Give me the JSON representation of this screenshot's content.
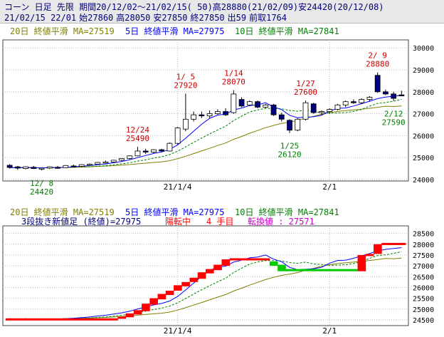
{
  "header": {
    "line1": "コーン 日足 先限 期間20/12/02～21/02/15( 50)高28880(21/02/09)安24420(20/12/08)",
    "date": "21/02/15 22/01",
    "open": "始27860",
    "high": "高28050",
    "low": "安27850",
    "close": "終27850",
    "volume": "出59",
    "oi": "前取1764"
  },
  "colors": {
    "up": "#ffffff",
    "down": "#000080",
    "ma20": "#808000",
    "ma5": "#0000ff",
    "ma10": "#008000",
    "red": "#ff0000",
    "green": "#00cc00",
    "annot_high": "#cc0000",
    "annot_low": "#008000"
  },
  "top_panel": {
    "legend": {
      "ma20": "20日 終値平滑 MA=27519",
      "ma5": "5日 終値平滑 MA=27975",
      "ma10": "10日 終値平滑 MA=27841"
    },
    "yticks": [
      "30000",
      "29000",
      "28000",
      "27000",
      "26000",
      "25000",
      "24000"
    ],
    "xticks": [
      "21/1/4",
      "2/1"
    ],
    "annotations": [
      {
        "date": "12/ 8",
        "value": "24420",
        "kind": "low"
      },
      {
        "date": "12/24",
        "value": "25490",
        "kind": "high"
      },
      {
        "date": "1/ 5",
        "value": "27920",
        "kind": "high"
      },
      {
        "date": "1/14",
        "value": "28070",
        "kind": "high"
      },
      {
        "date": "1/25",
        "value": "26120",
        "kind": "low"
      },
      {
        "date": "1/27",
        "value": "27600",
        "kind": "high"
      },
      {
        "date": "2/ 9",
        "value": "28880",
        "kind": "high"
      },
      {
        "date": "2/12",
        "value": "27590",
        "kind": "low"
      }
    ]
  },
  "bottom_panel": {
    "legend": {
      "ma20": "20日 終値平滑 MA=27519",
      "ma5": "5日 終値平滑 MA=27975",
      "ma10": "10日 終値平滑 MA=27841"
    },
    "info": {
      "label": "3段抜き新値足 (終値)=27975",
      "trend": "陽転中",
      "count": "4 手目",
      "reversal": "転換値 : 27571"
    },
    "yticks": [
      "28500",
      "28000",
      "27500",
      "27000",
      "26500",
      "26000",
      "25500",
      "25000",
      "24500"
    ],
    "xticks": [
      "21/1/4",
      "2/1"
    ]
  },
  "chart_data": [
    {
      "type": "candlestick",
      "period": "20/12/02–21/02/15",
      "ylim": [
        24000,
        30300
      ],
      "x": [
        "12/02",
        "12/03",
        "12/04",
        "12/07",
        "12/08",
        "12/09",
        "12/10",
        "12/11",
        "12/14",
        "12/15",
        "12/16",
        "12/17",
        "12/18",
        "12/21",
        "12/22",
        "12/23",
        "12/24",
        "12/25",
        "12/28",
        "12/29",
        "12/30",
        "1/04",
        "1/05",
        "1/06",
        "1/07",
        "1/08",
        "1/12",
        "1/13",
        "1/14",
        "1/15",
        "1/18",
        "1/19",
        "1/20",
        "1/21",
        "1/22",
        "1/25",
        "1/26",
        "1/27",
        "1/28",
        "1/29",
        "2/01",
        "2/02",
        "2/03",
        "2/04",
        "2/05",
        "2/08",
        "2/09",
        "2/10",
        "2/12",
        "2/15"
      ],
      "ohlc": [
        [
          24650,
          24700,
          24500,
          24550
        ],
        [
          24580,
          24620,
          24440,
          24520
        ],
        [
          24500,
          24600,
          24460,
          24580
        ],
        [
          24560,
          24620,
          24480,
          24500
        ],
        [
          24500,
          24540,
          24420,
          24520
        ],
        [
          24520,
          24600,
          24480,
          24580
        ],
        [
          24560,
          24620,
          24500,
          24540
        ],
        [
          24540,
          24660,
          24520,
          24640
        ],
        [
          24620,
          24680,
          24560,
          24600
        ],
        [
          24600,
          24700,
          24560,
          24680
        ],
        [
          24680,
          24740,
          24620,
          24700
        ],
        [
          24700,
          24800,
          24680,
          24780
        ],
        [
          24780,
          24860,
          24740,
          24800
        ],
        [
          24800,
          24900,
          24760,
          24880
        ],
        [
          24880,
          24980,
          24840,
          24960
        ],
        [
          24960,
          25100,
          24920,
          25080
        ],
        [
          25080,
          25490,
          25060,
          25300
        ],
        [
          25300,
          25400,
          25160,
          25250
        ],
        [
          25250,
          25380,
          25200,
          25360
        ],
        [
          25360,
          25400,
          25260,
          25300
        ],
        [
          25300,
          25700,
          25280,
          25650
        ],
        [
          25650,
          26400,
          25600,
          26350
        ],
        [
          26300,
          27920,
          26200,
          26750
        ],
        [
          26750,
          27100,
          26650,
          26950
        ],
        [
          26950,
          27100,
          26800,
          26900
        ],
        [
          26900,
          27150,
          26800,
          27000
        ],
        [
          27000,
          27200,
          26950,
          27100
        ],
        [
          27100,
          27250,
          26900,
          26950
        ],
        [
          27050,
          28070,
          27000,
          27900
        ],
        [
          27650,
          27750,
          27300,
          27350
        ],
        [
          27400,
          27600,
          27350,
          27550
        ],
        [
          27550,
          27600,
          27250,
          27300
        ],
        [
          27300,
          27450,
          27250,
          27400
        ],
        [
          27400,
          27450,
          26900,
          26950
        ],
        [
          26950,
          27050,
          26650,
          26750
        ],
        [
          26700,
          26750,
          26120,
          26250
        ],
        [
          26250,
          26800,
          26200,
          26750
        ],
        [
          26750,
          27600,
          26700,
          27500
        ],
        [
          27450,
          27500,
          27000,
          27050
        ],
        [
          27050,
          27150,
          26950,
          27100
        ],
        [
          27100,
          27250,
          27000,
          27200
        ],
        [
          27200,
          27450,
          27150,
          27400
        ],
        [
          27400,
          27600,
          27300,
          27550
        ],
        [
          27550,
          27650,
          27450,
          27500
        ],
        [
          27500,
          27700,
          27450,
          27650
        ],
        [
          27650,
          27800,
          27550,
          27750
        ],
        [
          28750,
          28880,
          27950,
          28000
        ],
        [
          28000,
          28100,
          27850,
          27900
        ],
        [
          27900,
          28000,
          27590,
          27700
        ],
        [
          27860,
          28050,
          27850,
          27850
        ]
      ]
    },
    {
      "type": "bar",
      "name": "3段抜き新値足 (終値)",
      "ylim": [
        24300,
        28750
      ],
      "x": [
        "12/02",
        "12/03",
        "12/04",
        "12/07",
        "12/08",
        "12/09",
        "12/10",
        "12/11",
        "12/14",
        "12/15",
        "12/16",
        "12/17",
        "12/18",
        "12/21",
        "12/22",
        "12/23",
        "12/24",
        "12/25",
        "12/28",
        "12/29",
        "12/30",
        "1/04",
        "1/05",
        "1/06",
        "1/07",
        "1/08",
        "1/12",
        "1/13",
        "1/14",
        "1/15",
        "1/18",
        "1/19",
        "1/20",
        "1/21",
        "1/22",
        "1/25",
        "1/26",
        "1/27",
        "1/28",
        "1/29",
        "2/01",
        "2/02",
        "2/03",
        "2/04",
        "2/05",
        "2/08",
        "2/09",
        "2/10",
        "2/12",
        "2/15"
      ],
      "blocks": [
        [
          24480,
          24570,
          "red"
        ],
        [
          24480,
          24570,
          "red"
        ],
        [
          24480,
          24570,
          "red"
        ],
        [
          24480,
          24570,
          "red"
        ],
        [
          24480,
          24570,
          "red"
        ],
        [
          24480,
          24570,
          "red"
        ],
        [
          24480,
          24570,
          "red"
        ],
        [
          24480,
          24570,
          "red"
        ],
        [
          24480,
          24570,
          "red"
        ],
        [
          24480,
          24570,
          "red"
        ],
        [
          24480,
          24570,
          "red"
        ],
        [
          24480,
          24570,
          "red"
        ],
        [
          24480,
          24570,
          "red"
        ],
        [
          24480,
          24570,
          "red"
        ],
        [
          24550,
          24650,
          "red"
        ],
        [
          24620,
          24800,
          "red"
        ],
        [
          24750,
          24950,
          "red"
        ],
        [
          24900,
          25250,
          "red"
        ],
        [
          25200,
          25500,
          "red"
        ],
        [
          25450,
          25700,
          "red"
        ],
        [
          25650,
          25850,
          "red"
        ],
        [
          25850,
          26100,
          "red"
        ],
        [
          26050,
          26250,
          "red"
        ],
        [
          26250,
          26450,
          "red"
        ],
        [
          26400,
          26700,
          "red"
        ],
        [
          26650,
          26850,
          "red"
        ],
        [
          26800,
          27050,
          "red"
        ],
        [
          27000,
          27300,
          "red"
        ],
        [
          27250,
          27350,
          "red"
        ],
        [
          27250,
          27350,
          "red"
        ],
        [
          27250,
          27350,
          "red"
        ],
        [
          27250,
          27350,
          "red"
        ],
        [
          27250,
          27350,
          "red"
        ],
        [
          27000,
          27200,
          "green"
        ],
        [
          26750,
          27050,
          "green"
        ],
        [
          26750,
          26850,
          "green"
        ],
        [
          26750,
          26850,
          "green"
        ],
        [
          26750,
          26850,
          "green"
        ],
        [
          26750,
          26850,
          "green"
        ],
        [
          26750,
          26850,
          "green"
        ],
        [
          26750,
          26850,
          "green"
        ],
        [
          26750,
          26850,
          "green"
        ],
        [
          26750,
          26850,
          "green"
        ],
        [
          26750,
          26850,
          "green"
        ],
        [
          26750,
          27500,
          "red"
        ],
        [
          27450,
          27550,
          "red"
        ],
        [
          27550,
          28000,
          "red"
        ],
        [
          27980,
          28060,
          "red"
        ],
        [
          27980,
          28060,
          "red"
        ],
        [
          27980,
          28060,
          "red"
        ]
      ]
    }
  ]
}
